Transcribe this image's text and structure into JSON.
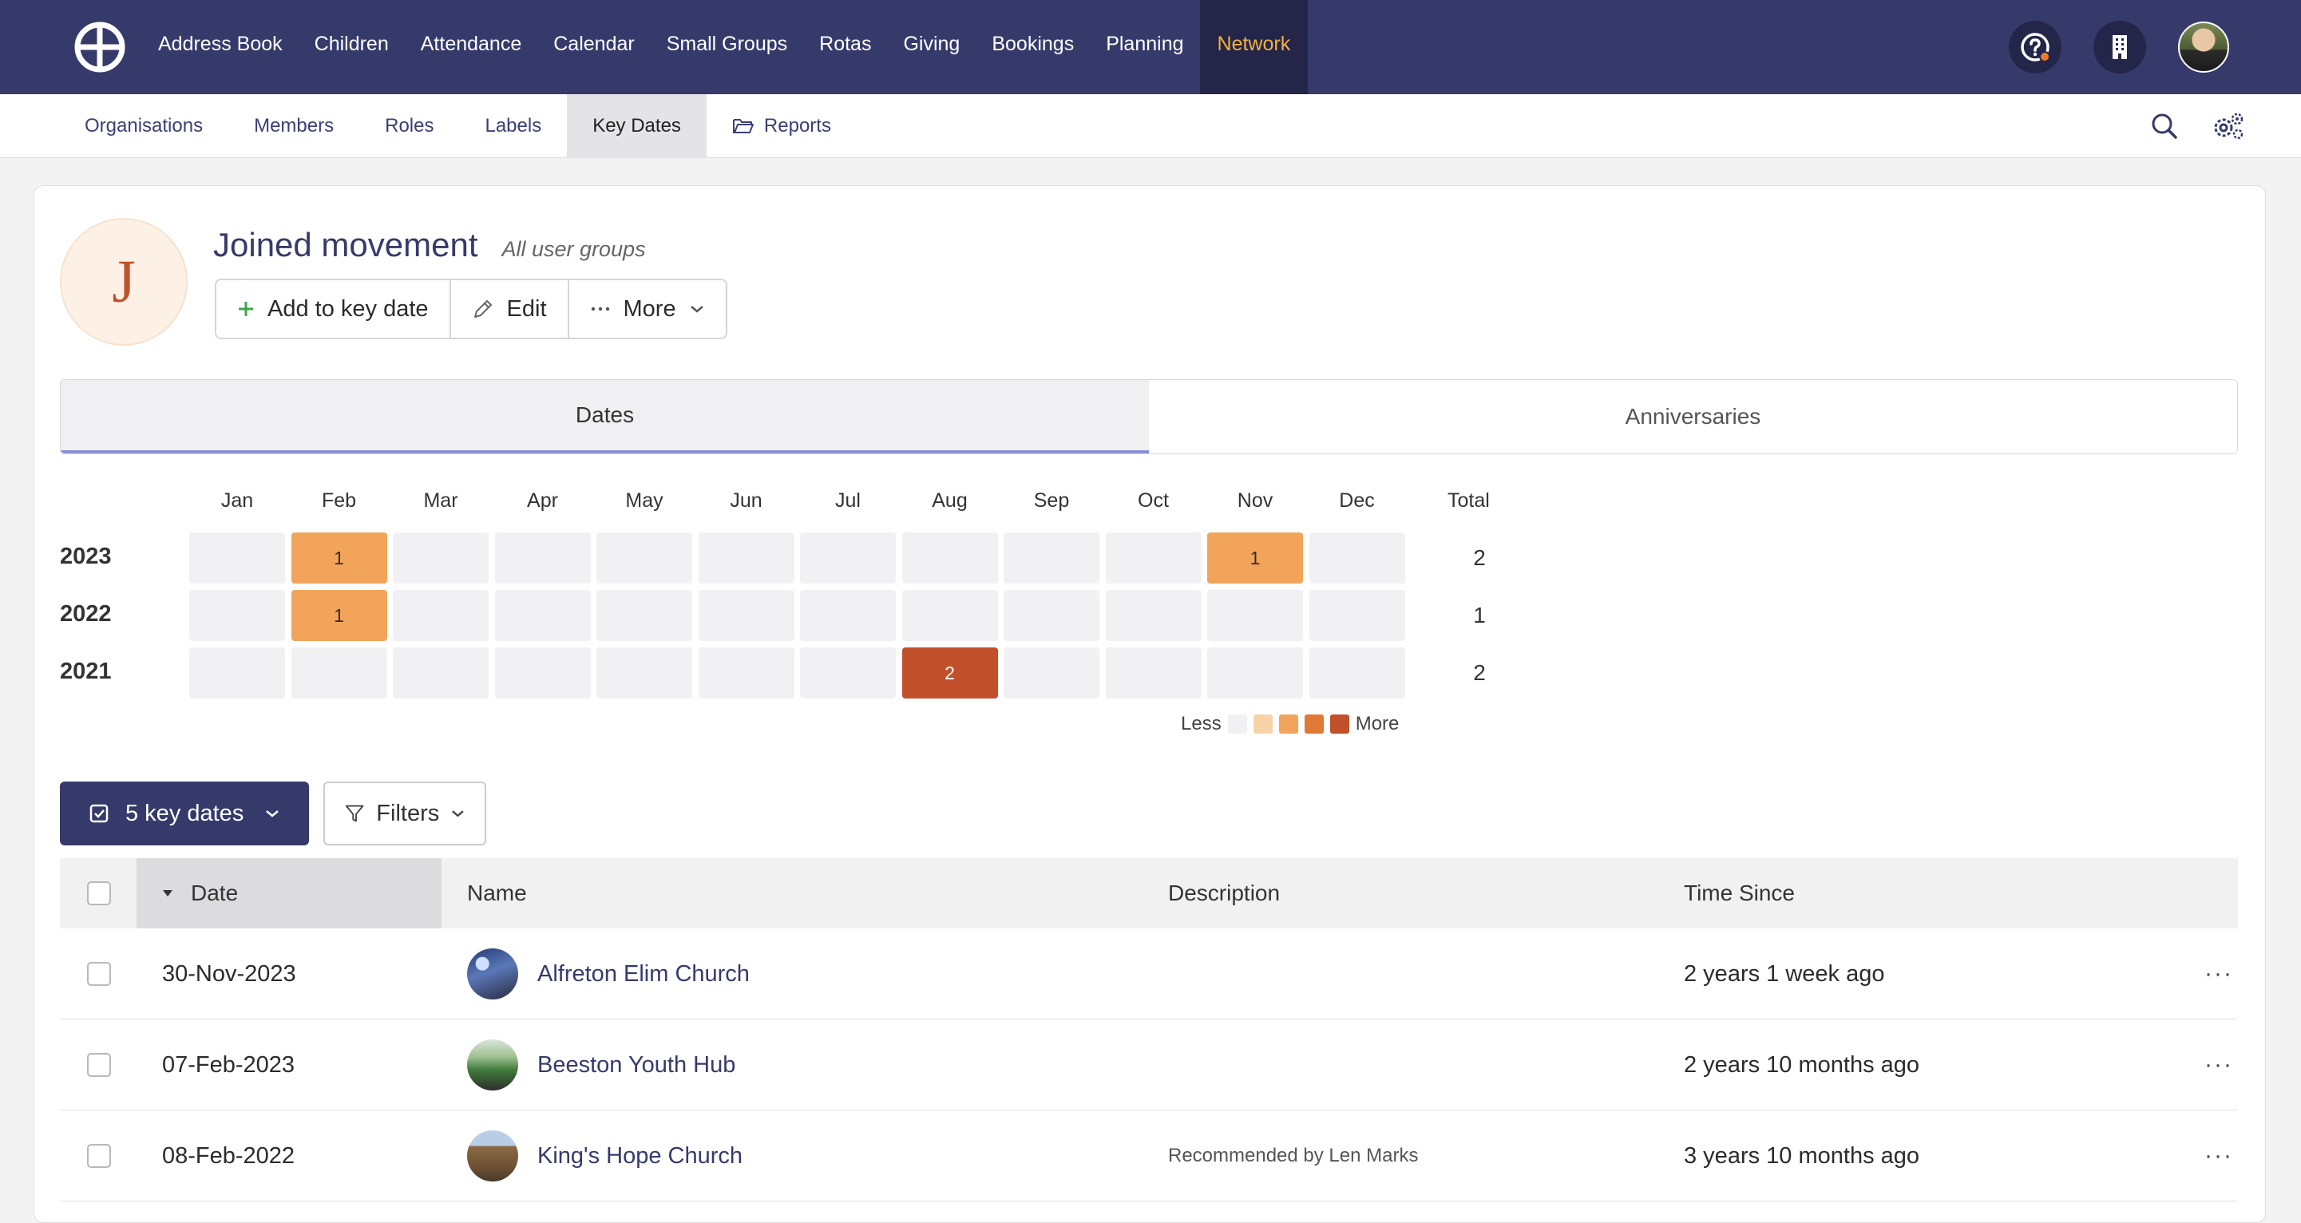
{
  "topnav": {
    "items": [
      "Address Book",
      "Children",
      "Attendance",
      "Calendar",
      "Small Groups",
      "Rotas",
      "Giving",
      "Bookings",
      "Planning",
      "Network"
    ],
    "active": "Network"
  },
  "subnav": {
    "items": [
      "Organisations",
      "Members",
      "Roles",
      "Labels",
      "Key Dates",
      "Reports"
    ],
    "active": "Key Dates"
  },
  "header": {
    "avatar_letter": "J",
    "title": "Joined movement",
    "subtitle": "All user groups",
    "add_label": "Add to key date",
    "edit_label": "Edit",
    "more_label": "More"
  },
  "tabs": [
    "Dates",
    "Anniversaries"
  ],
  "heatmap": {
    "months": [
      "Jan",
      "Feb",
      "Mar",
      "Apr",
      "May",
      "Jun",
      "Jul",
      "Aug",
      "Sep",
      "Oct",
      "Nov",
      "Dec"
    ],
    "total_label": "Total",
    "rows": [
      {
        "year": "2023",
        "counts": [
          0,
          1,
          0,
          0,
          0,
          0,
          0,
          0,
          0,
          0,
          1,
          0
        ],
        "total": "2"
      },
      {
        "year": "2022",
        "counts": [
          0,
          1,
          0,
          0,
          0,
          0,
          0,
          0,
          0,
          0,
          0,
          0
        ],
        "total": "1"
      },
      {
        "year": "2021",
        "counts": [
          0,
          0,
          0,
          0,
          0,
          0,
          0,
          2,
          0,
          0,
          0,
          0
        ],
        "total": "2"
      }
    ],
    "legend_less": "Less",
    "legend_more": "More",
    "colors": [
      "#f1f1f3",
      "#f8d3a8",
      "#f2a55a",
      "#e07836",
      "#c2502a"
    ]
  },
  "toolbar": {
    "keydates_label": "5 key dates",
    "filters_label": "Filters"
  },
  "table": {
    "headers": {
      "date": "Date",
      "name": "Name",
      "description": "Description",
      "time_since": "Time Since"
    },
    "rows": [
      {
        "date": "30-Nov-2023",
        "name": "Alfreton Elim Church",
        "description": "",
        "time_since": "2 years 1 week ago"
      },
      {
        "date": "07-Feb-2023",
        "name": "Beeston Youth Hub",
        "description": "",
        "time_since": "2 years 10 months ago"
      },
      {
        "date": "08-Feb-2022",
        "name": "King's Hope Church",
        "description": "Recommended by Len Marks",
        "time_since": "3 years 10 months ago"
      }
    ]
  }
}
